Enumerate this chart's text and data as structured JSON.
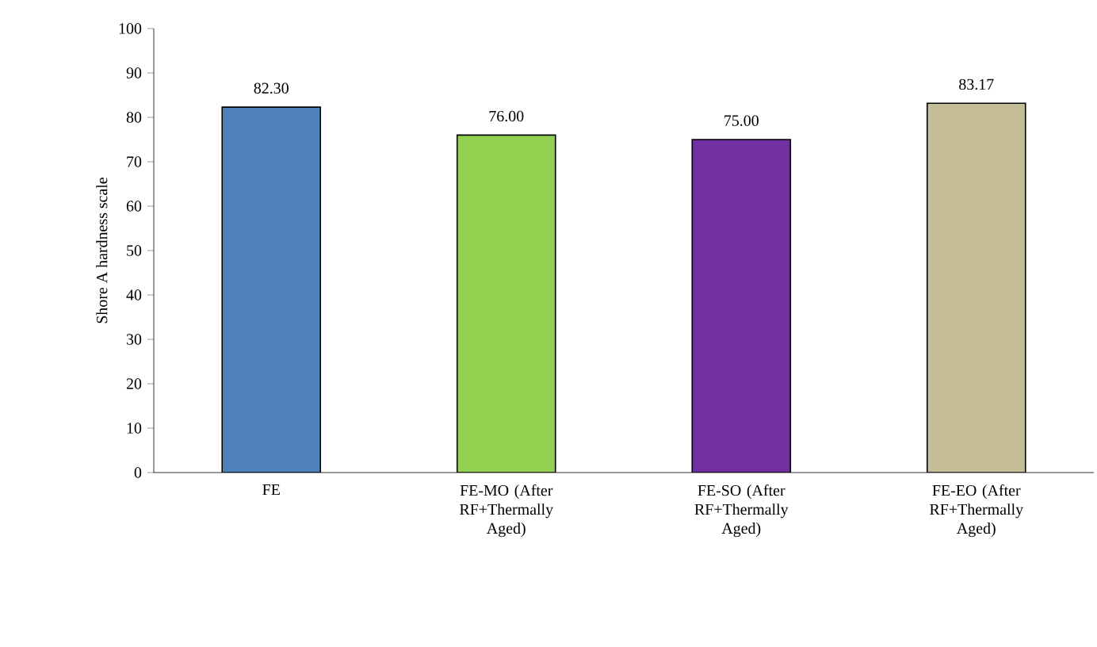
{
  "chart_data": {
    "type": "bar",
    "ylabel": "Shore A hardness scale",
    "categories": [
      "FE",
      "FE-MO (After RF+Thermally Aged)",
      "FE-SO (After RF+Thermally Aged)",
      "FE-EO (After RF+Thermally Aged)"
    ],
    "values": [
      82.3,
      76.0,
      75.0,
      83.17
    ],
    "value_labels": [
      "82.30",
      "76.00",
      "75.00",
      "83.17"
    ],
    "colors": [
      "#4f81bd",
      "#92d050",
      "#7030a0",
      "#c4bd97"
    ],
    "ylim": [
      0,
      100
    ],
    "yticks": [
      0,
      10,
      20,
      30,
      40,
      50,
      60,
      70,
      80,
      90,
      100
    ],
    "grid": false
  }
}
